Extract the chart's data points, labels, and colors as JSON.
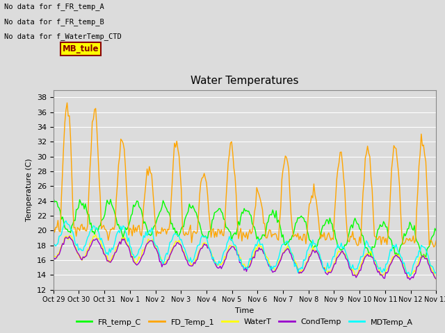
{
  "title": "Water Temperatures",
  "xlabel": "Time",
  "ylabel": "Temperature (C)",
  "ylim": [
    12,
    39
  ],
  "yticks": [
    12,
    14,
    16,
    18,
    20,
    22,
    24,
    26,
    28,
    30,
    32,
    34,
    36,
    38
  ],
  "plot_bg_color": "#dcdcdc",
  "fig_bg_color": "#dcdcdc",
  "grid_color": "white",
  "annotation_lines": [
    "No data for f_FR_temp_A",
    "No data for f_FR_temp_B",
    "No data for f_WaterTemp_CTD"
  ],
  "mb_tule_label": "MB_tule",
  "legend_entries": [
    {
      "label": "FR_temp_C",
      "color": "#00ff00"
    },
    {
      "label": "FD_Temp_1",
      "color": "#ffa500"
    },
    {
      "label": "WaterT",
      "color": "#ffff00"
    },
    {
      "label": "CondTemp",
      "color": "#9900cc"
    },
    {
      "label": "MDTemp_A",
      "color": "#00ffff"
    }
  ],
  "x_tick_labels": [
    "Oct 29",
    "Oct 30",
    "Oct 31",
    "Nov 1",
    "Nov 2",
    "Nov 3",
    "Nov 4",
    "Nov 5",
    "Nov 6",
    "Nov 7",
    "Nov 8",
    "Nov 9",
    "Nov 10",
    "Nov 11",
    "Nov 12",
    "Nov 13"
  ]
}
